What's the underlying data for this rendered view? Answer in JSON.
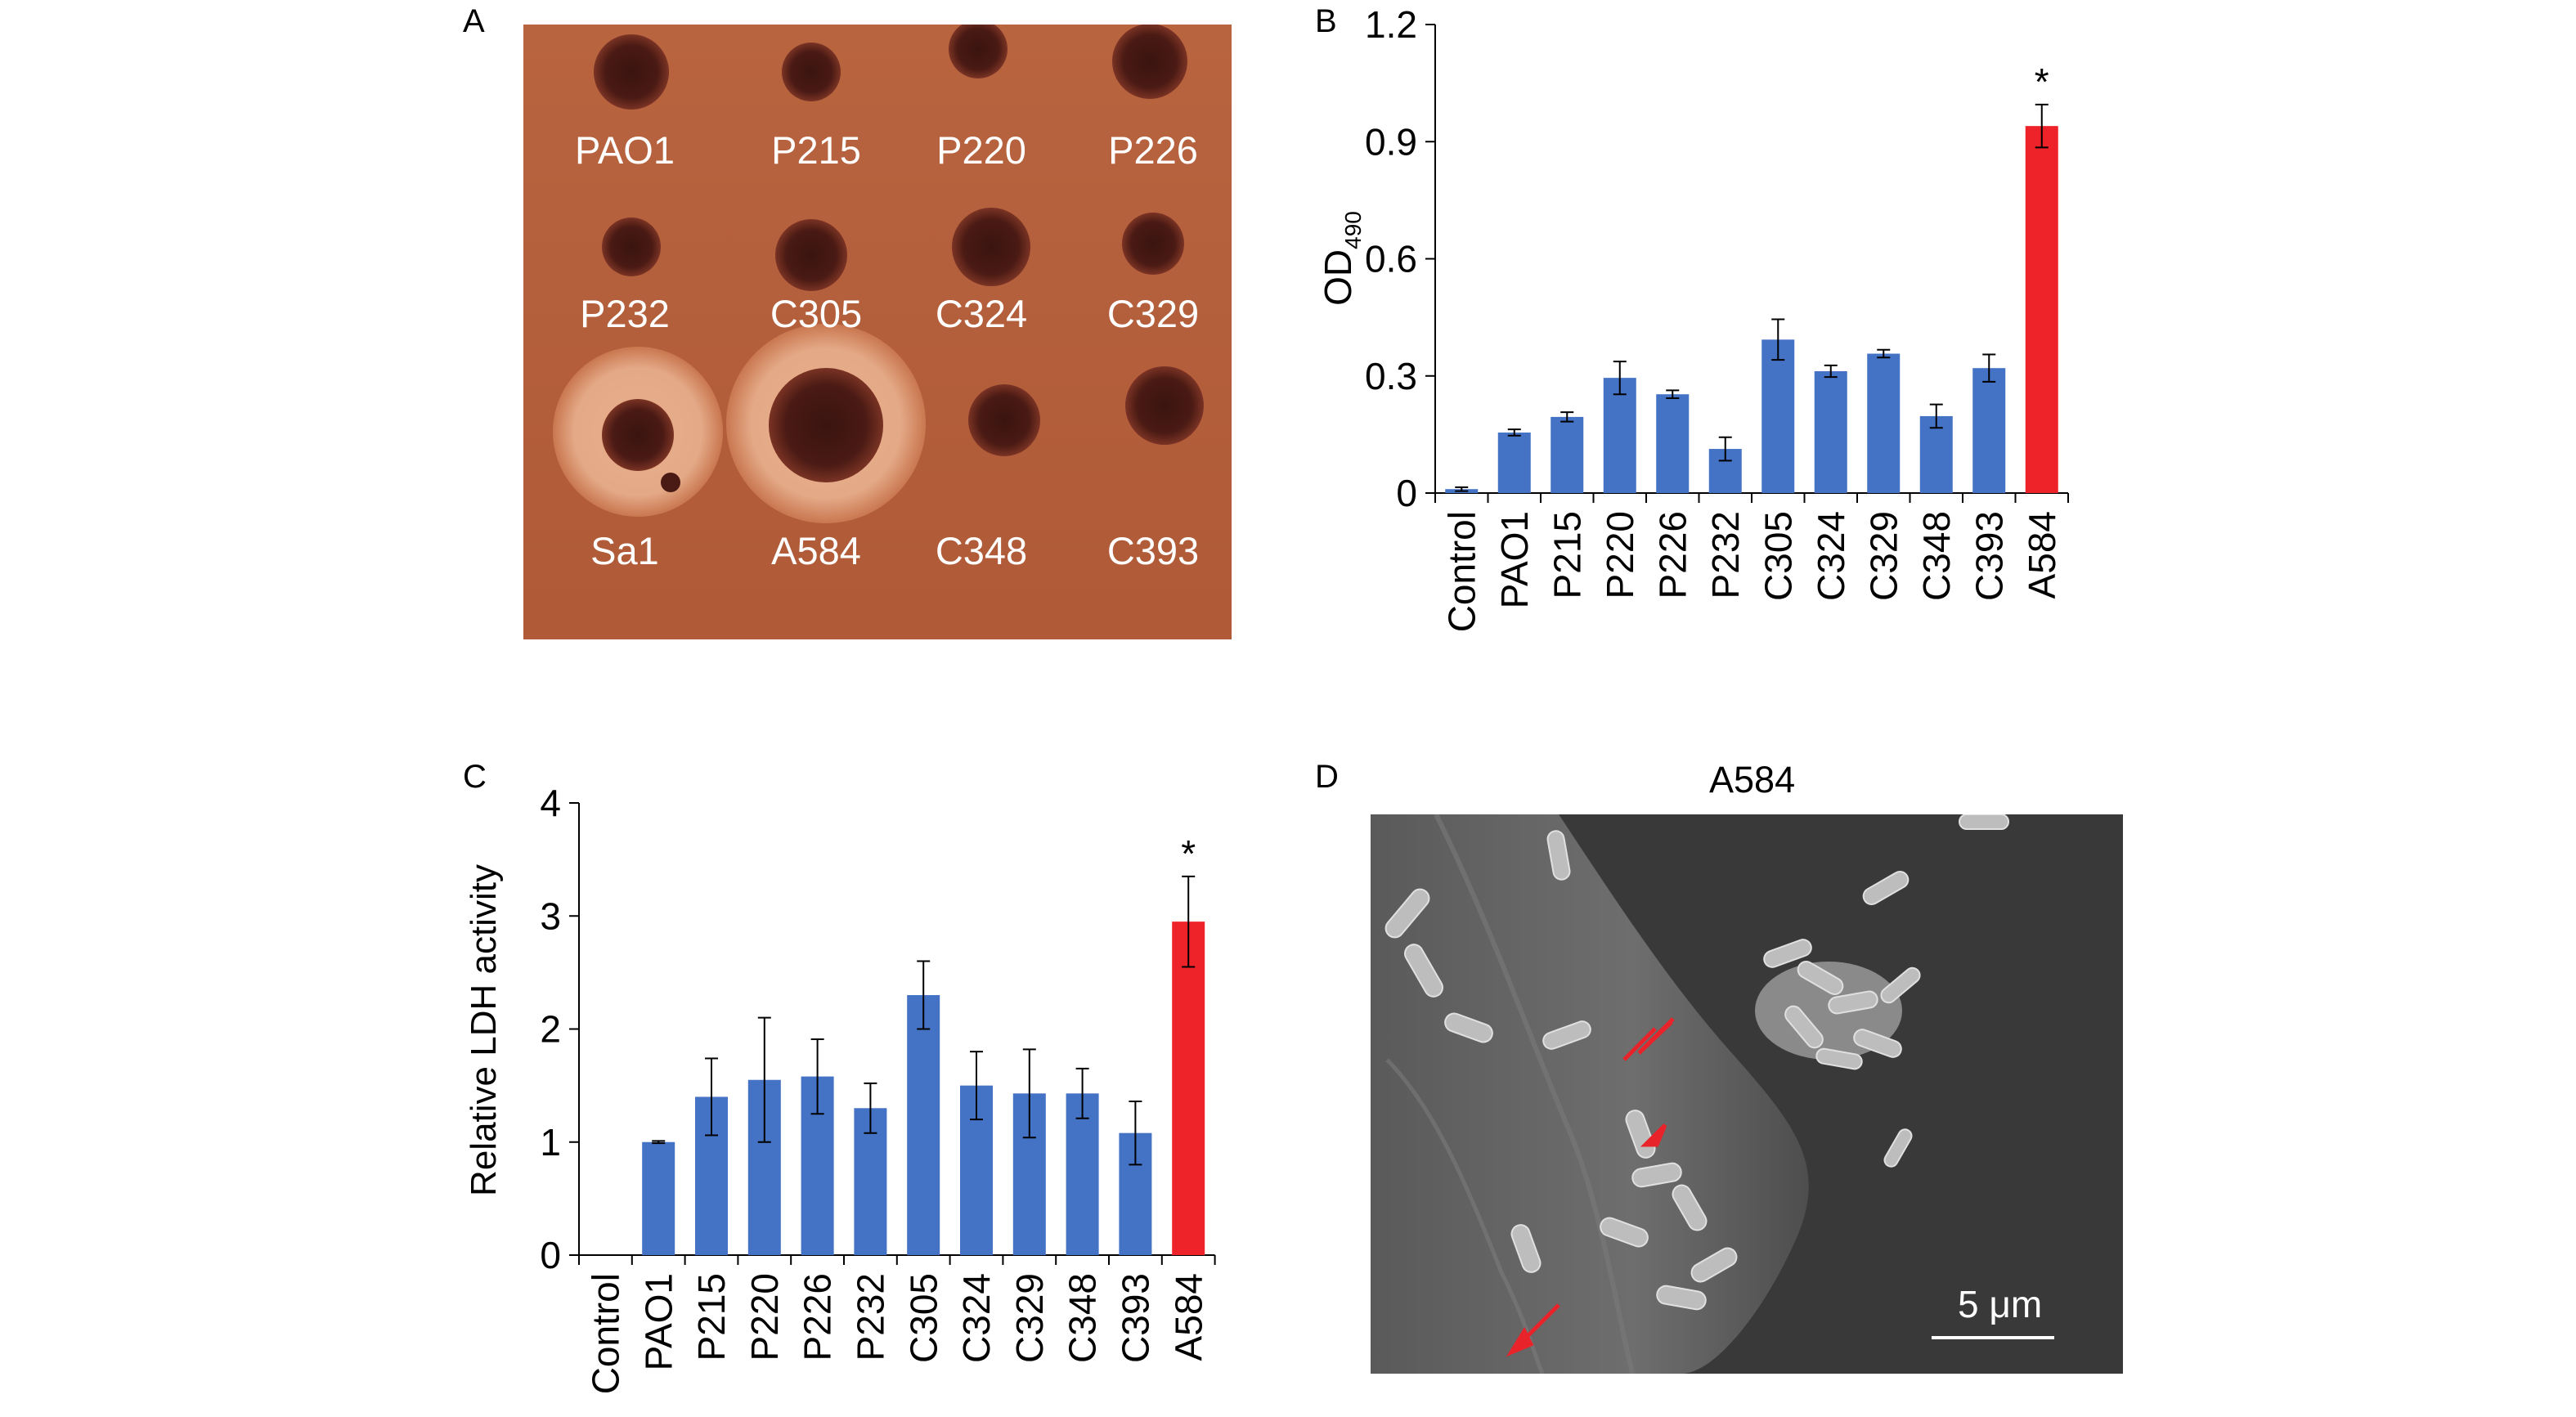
{
  "panels": {
    "a": "A",
    "b": "B",
    "c": "C",
    "d": "D"
  },
  "plate": {
    "rows": [
      [
        "PAO1",
        "P215",
        "P220",
        "P226"
      ],
      [
        "P232",
        "C305",
        "C324",
        "C329"
      ],
      [
        "Sa1",
        "A584",
        "C348",
        "C393"
      ]
    ]
  },
  "colors": {
    "bar_default": "#4472c4",
    "bar_highlight": "#ee2229",
    "plate": "#b35e3c",
    "arrow": "#e8232a"
  },
  "chart_data": [
    {
      "type": "bar",
      "panel": "B",
      "categories": [
        "Control",
        "PAO1",
        "P215",
        "P220",
        "P226",
        "P232",
        "C305",
        "C324",
        "C329",
        "C348",
        "C393",
        "A584"
      ],
      "values": [
        0.01,
        0.155,
        0.195,
        0.295,
        0.253,
        0.113,
        0.393,
        0.312,
        0.357,
        0.197,
        0.32,
        0.94
      ],
      "errors": [
        0.005,
        0.008,
        0.012,
        0.042,
        0.01,
        0.03,
        0.052,
        0.015,
        0.01,
        0.03,
        0.035,
        0.055
      ],
      "highlight": [
        "A584"
      ],
      "significance": {
        "A584": "*"
      },
      "ylabel_main": "OD",
      "ylabel_sub": "490",
      "ylim": [
        0,
        1.2
      ],
      "yticks": [
        "0",
        "0.3",
        "0.6",
        "0.9",
        "1.2"
      ],
      "grid": false
    },
    {
      "type": "bar",
      "panel": "C",
      "categories": [
        "Control",
        "PAO1",
        "P215",
        "P220",
        "P226",
        "P232",
        "C305",
        "C324",
        "C329",
        "C348",
        "C393",
        "A584"
      ],
      "values": [
        0,
        1.0,
        1.4,
        1.55,
        1.58,
        1.3,
        2.3,
        1.5,
        1.43,
        1.43,
        1.08,
        2.95
      ],
      "errors": [
        0,
        0.01,
        0.34,
        0.55,
        0.33,
        0.22,
        0.3,
        0.3,
        0.39,
        0.22,
        0.28,
        0.4
      ],
      "highlight": [
        "A584"
      ],
      "significance": {
        "A584": "*"
      },
      "ylabel": "Relative LDH activity",
      "ylim": [
        0,
        4
      ],
      "yticks": [
        "0",
        "1",
        "2",
        "3",
        "4"
      ],
      "grid": false
    }
  ],
  "sem": {
    "title": "A584",
    "scale": "5 μm"
  }
}
